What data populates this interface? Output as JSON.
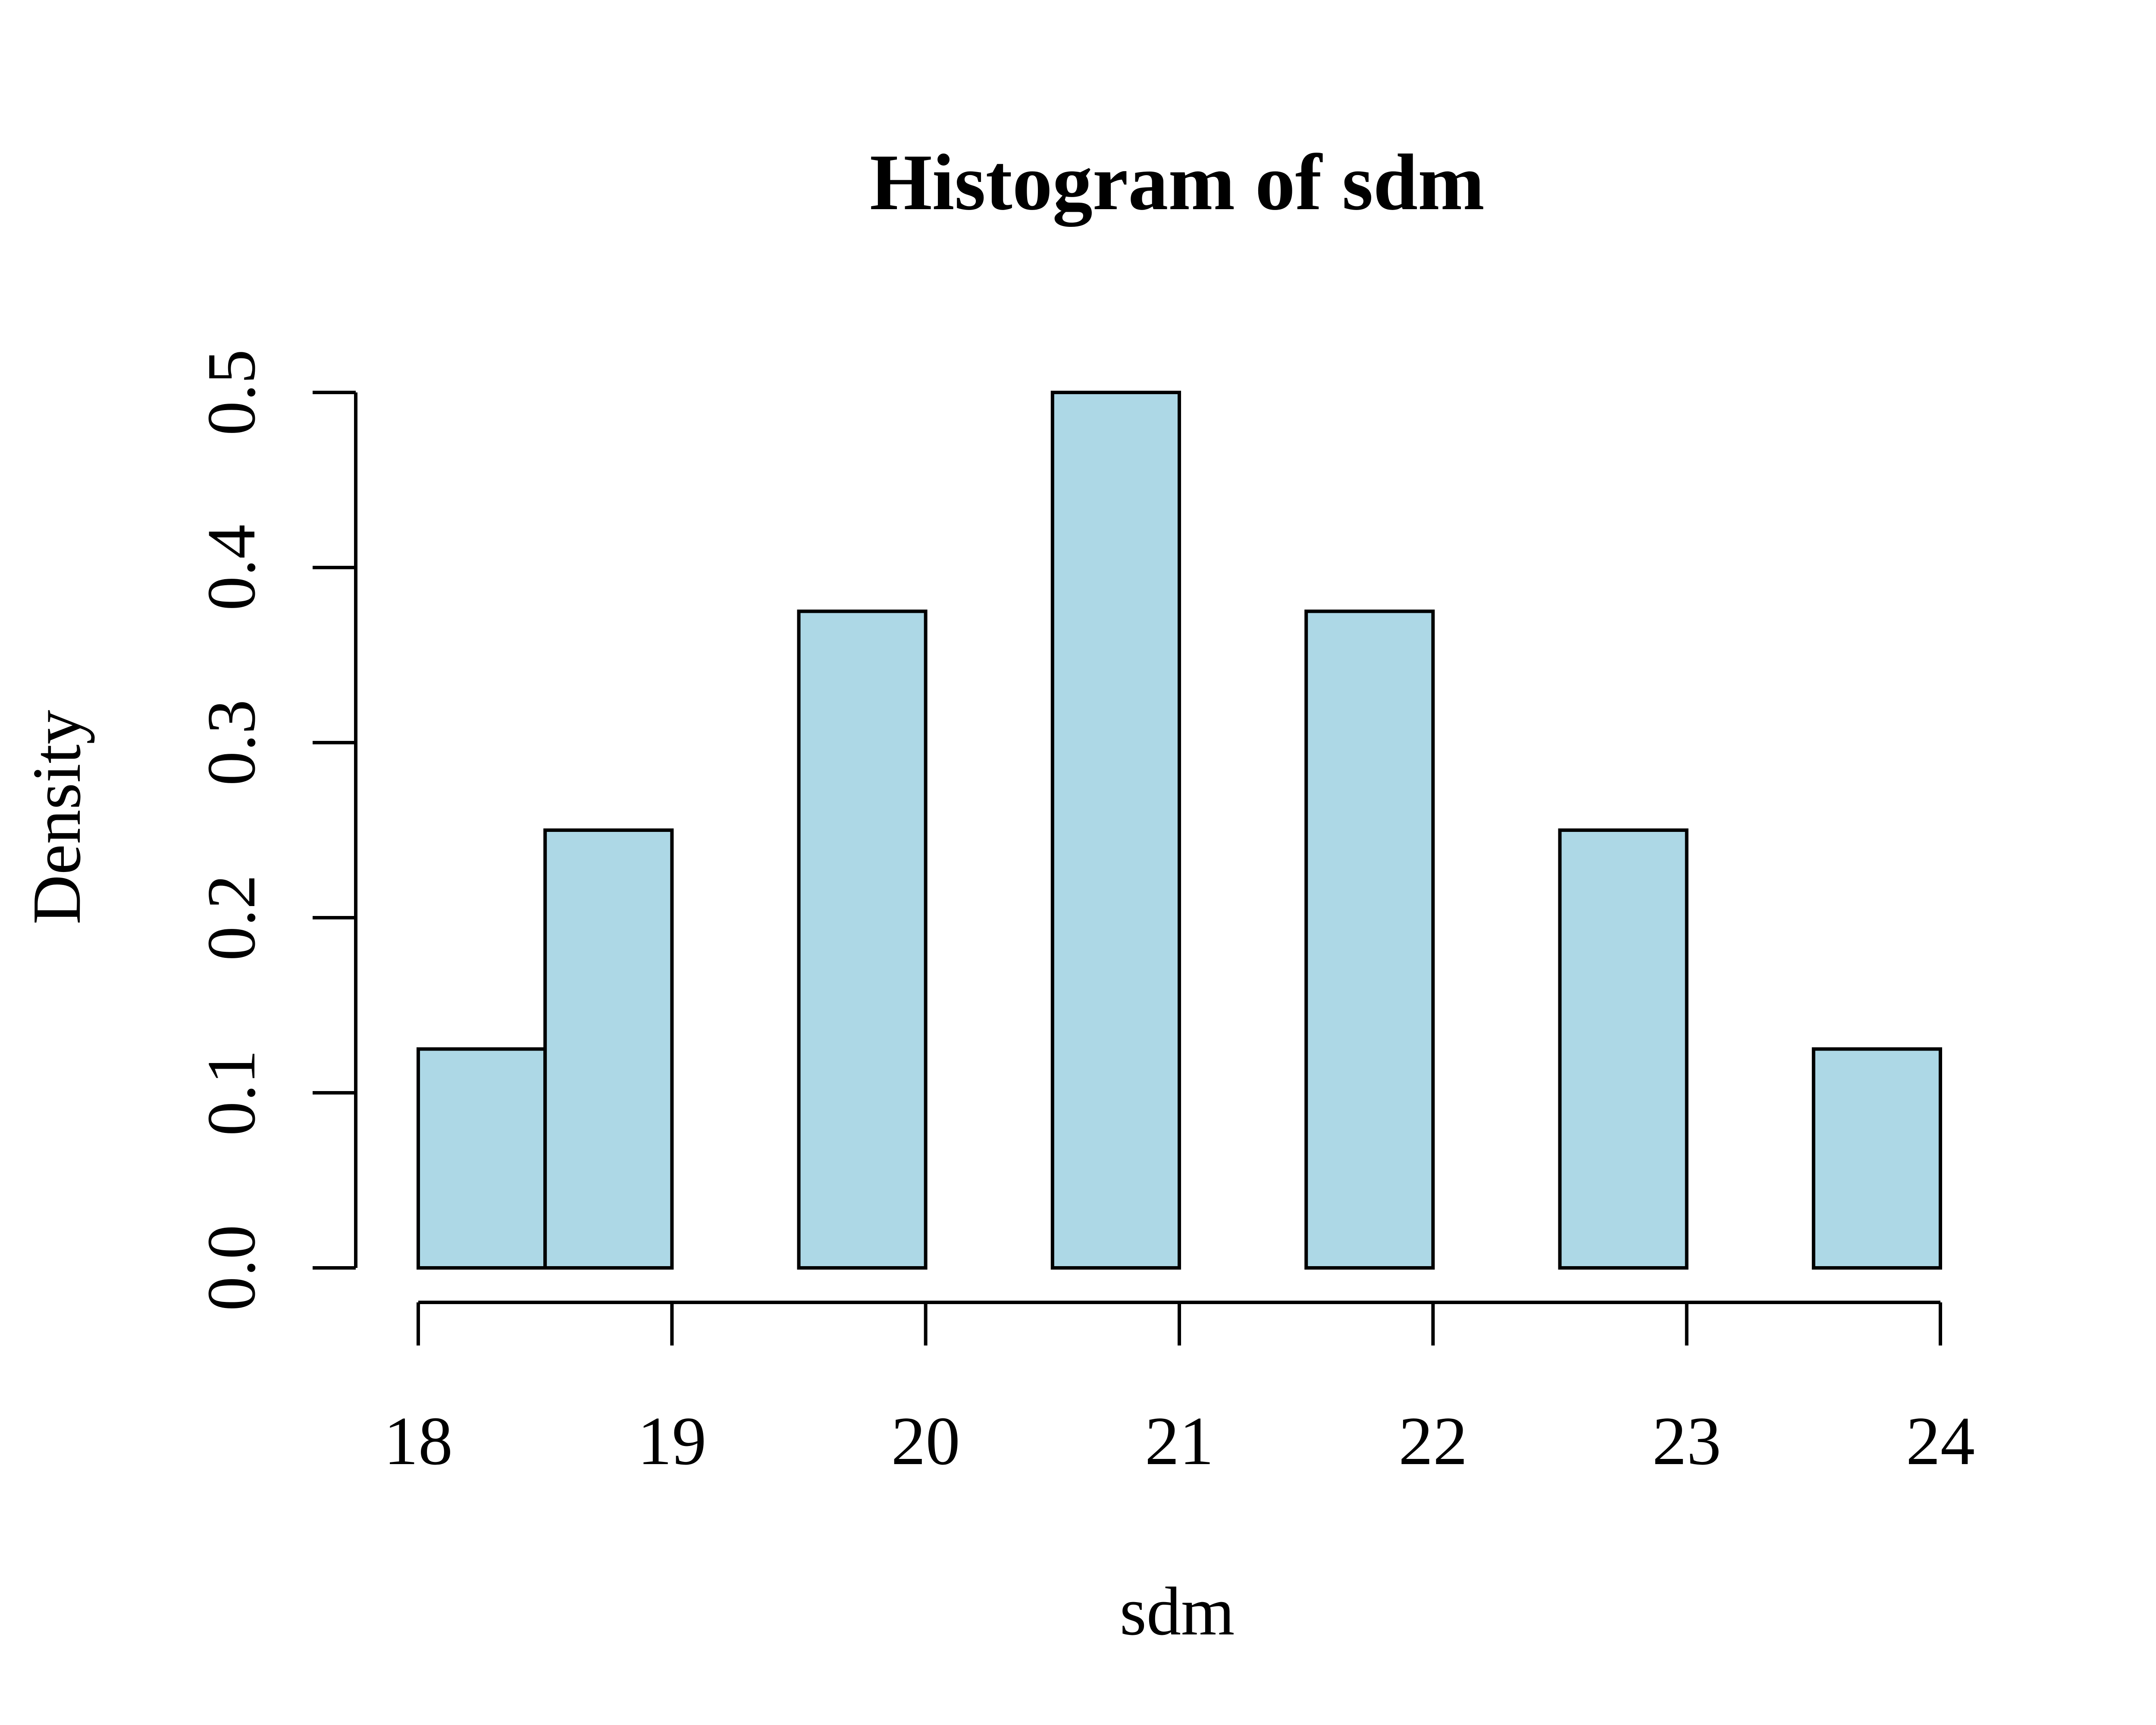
{
  "chart_data": {
    "type": "bar",
    "title": "Histogram of sdm",
    "xlabel": "sdm",
    "ylabel": "Density",
    "bins": [
      {
        "start": 18.0,
        "end": 18.5,
        "value": 0.125
      },
      {
        "start": 18.5,
        "end": 19.0,
        "value": 0.25
      },
      {
        "start": 19.0,
        "end": 19.5,
        "value": 0.0
      },
      {
        "start": 19.5,
        "end": 20.0,
        "value": 0.375
      },
      {
        "start": 20.0,
        "end": 20.5,
        "value": 0.0
      },
      {
        "start": 20.5,
        "end": 21.0,
        "value": 0.5
      },
      {
        "start": 21.0,
        "end": 21.5,
        "value": 0.0
      },
      {
        "start": 21.5,
        "end": 22.0,
        "value": 0.375
      },
      {
        "start": 22.0,
        "end": 22.5,
        "value": 0.0
      },
      {
        "start": 22.5,
        "end": 23.0,
        "value": 0.25
      },
      {
        "start": 23.0,
        "end": 23.5,
        "value": 0.0
      },
      {
        "start": 23.5,
        "end": 24.0,
        "value": 0.125
      }
    ],
    "xlim": [
      18,
      24
    ],
    "ylim": [
      0,
      0.5
    ],
    "x_ticks": [
      18,
      19,
      20,
      21,
      22,
      23,
      24
    ],
    "x_tick_labels": [
      "18",
      "19",
      "20",
      "21",
      "22",
      "23",
      "24"
    ],
    "y_ticks": [
      0,
      0.1,
      0.2,
      0.3,
      0.4,
      0.5
    ],
    "y_tick_labels": [
      "0.0",
      "0.1",
      "0.2",
      "0.3",
      "0.4",
      "0.5"
    ],
    "bar_color": "#add8e6",
    "grid": false,
    "legend": "none"
  }
}
